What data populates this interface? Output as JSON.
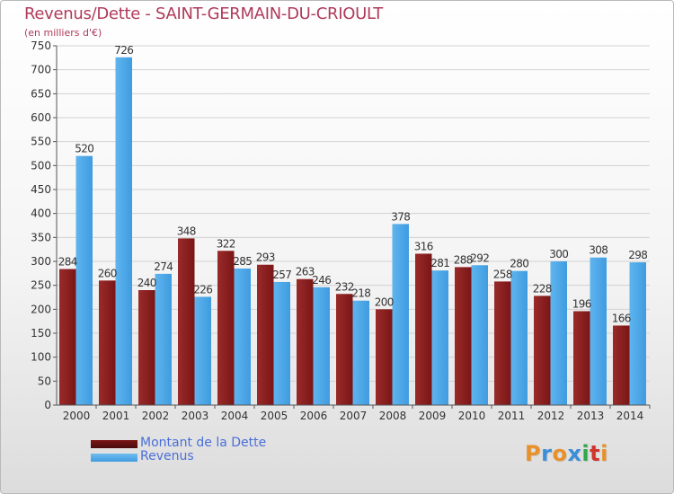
{
  "chart_data": {
    "type": "bar",
    "title": "Revenus/Dette - SAINT-GERMAIN-DU-CRIOULT",
    "subtitle": "(en milliers d'€)",
    "categories": [
      "2000",
      "2001",
      "2002",
      "2003",
      "2004",
      "2005",
      "2006",
      "2007",
      "2008",
      "2009",
      "2010",
      "2011",
      "2012",
      "2013",
      "2014"
    ],
    "series": [
      {
        "name": "Montant de la Dette",
        "color": "#7a1616",
        "values": [
          284,
          260,
          240,
          348,
          322,
          293,
          263,
          232,
          200,
          316,
          288,
          258,
          228,
          196,
          166
        ]
      },
      {
        "name": "Revenus",
        "color": "#3f9ce0",
        "values": [
          520,
          726,
          274,
          226,
          285,
          257,
          246,
          218,
          378,
          281,
          292,
          280,
          300,
          308,
          298
        ]
      }
    ],
    "ylim": [
      0,
      750
    ],
    "yticks": [
      0,
      50,
      100,
      150,
      200,
      250,
      300,
      350,
      400,
      450,
      500,
      550,
      600,
      650,
      700,
      750
    ],
    "grid": true,
    "legend_position": "bottom-left"
  },
  "logo": {
    "letters": [
      "P",
      "r",
      "o",
      "x",
      "i",
      "t",
      "i"
    ]
  }
}
